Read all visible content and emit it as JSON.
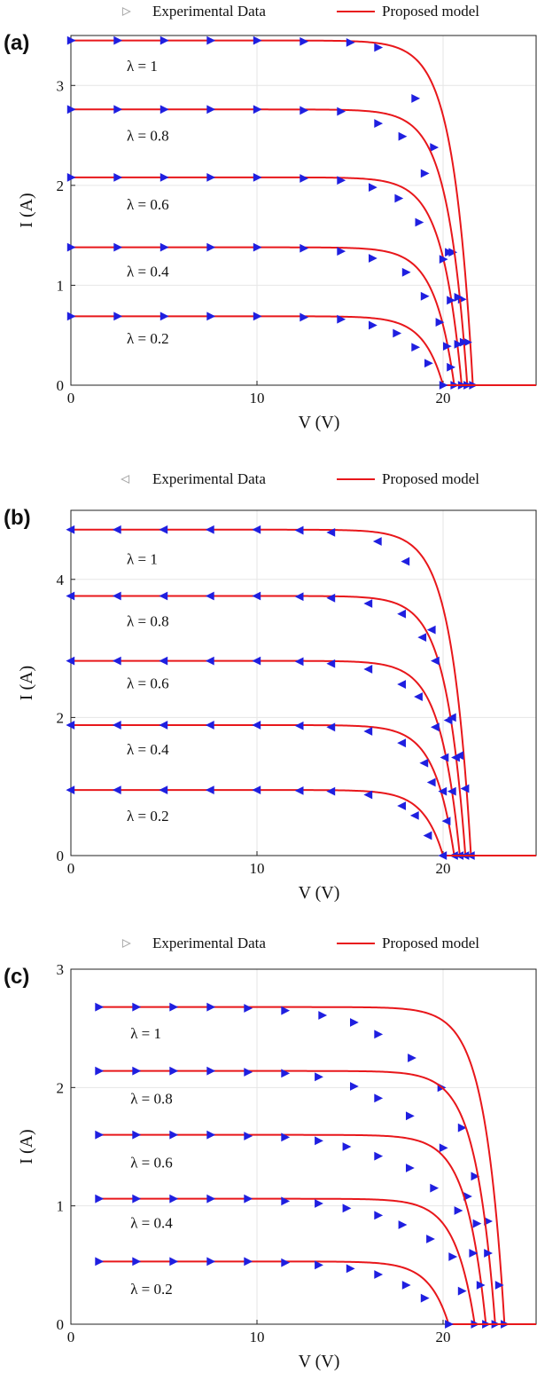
{
  "chart_data": [
    {
      "panel_label": "(a)",
      "type": "line",
      "xlabel": "V (V)",
      "ylabel": "I (A)",
      "xlim": [
        0,
        25
      ],
      "ylim": [
        0,
        3.5
      ],
      "xticks": [
        0,
        10,
        20
      ],
      "yticks": [
        0,
        1,
        2,
        3
      ],
      "grid": true,
      "legend": {
        "placement": "top",
        "experimental_label": "Experimental Data",
        "model_label": "Proposed model"
      },
      "marker": "triangle-right",
      "marker_color": "#1f1fe0",
      "line_color": "#e8171b",
      "series": [
        {
          "label": "λ = 1",
          "isc": 3.45,
          "voc": 21.6,
          "label_pos": [
            3,
            3.2
          ],
          "points": [
            [
              0,
              3.45
            ],
            [
              2.5,
              3.45
            ],
            [
              5,
              3.45
            ],
            [
              7.5,
              3.45
            ],
            [
              10,
              3.45
            ],
            [
              12.5,
              3.44
            ],
            [
              15,
              3.43
            ],
            [
              16.5,
              3.38
            ],
            [
              18.5,
              2.87
            ],
            [
              19.5,
              2.38
            ],
            [
              20.5,
              1.33
            ],
            [
              21,
              0.86
            ],
            [
              21.3,
              0.43
            ],
            [
              21.6,
              0
            ]
          ]
        },
        {
          "label": "λ = 0.8",
          "isc": 2.76,
          "voc": 21.3,
          "label_pos": [
            3,
            2.5
          ],
          "points": [
            [
              0,
              2.76
            ],
            [
              2.5,
              2.76
            ],
            [
              5,
              2.76
            ],
            [
              7.5,
              2.76
            ],
            [
              10,
              2.76
            ],
            [
              12.5,
              2.75
            ],
            [
              14.5,
              2.74
            ],
            [
              16.5,
              2.62
            ],
            [
              17.8,
              2.49
            ],
            [
              19,
              2.12
            ],
            [
              20.3,
              1.33
            ],
            [
              20.8,
              0.88
            ],
            [
              21.1,
              0.43
            ],
            [
              21.3,
              0
            ]
          ]
        },
        {
          "label": "λ = 0.6",
          "isc": 2.08,
          "voc": 21.0,
          "label_pos": [
            3,
            1.81
          ],
          "points": [
            [
              0,
              2.08
            ],
            [
              2.5,
              2.08
            ],
            [
              5,
              2.08
            ],
            [
              7.5,
              2.08
            ],
            [
              10,
              2.08
            ],
            [
              12.5,
              2.07
            ],
            [
              14.5,
              2.05
            ],
            [
              16.2,
              1.98
            ],
            [
              17.6,
              1.87
            ],
            [
              18.7,
              1.63
            ],
            [
              20,
              1.26
            ],
            [
              20.4,
              0.85
            ],
            [
              20.8,
              0.41
            ],
            [
              21,
              0
            ]
          ]
        },
        {
          "label": "λ = 0.4",
          "isc": 1.38,
          "voc": 20.6,
          "label_pos": [
            3,
            1.14
          ],
          "points": [
            [
              0,
              1.38
            ],
            [
              2.5,
              1.38
            ],
            [
              5,
              1.38
            ],
            [
              7.5,
              1.38
            ],
            [
              10,
              1.38
            ],
            [
              12.5,
              1.37
            ],
            [
              14.5,
              1.34
            ],
            [
              16.2,
              1.27
            ],
            [
              18,
              1.13
            ],
            [
              19,
              0.89
            ],
            [
              19.8,
              0.63
            ],
            [
              20.2,
              0.39
            ],
            [
              20.4,
              0.18
            ],
            [
              20.6,
              0
            ]
          ]
        },
        {
          "label": "λ = 0.2",
          "isc": 0.69,
          "voc": 20.0,
          "label_pos": [
            3,
            0.47
          ],
          "points": [
            [
              0,
              0.69
            ],
            [
              2.5,
              0.69
            ],
            [
              5,
              0.69
            ],
            [
              7.5,
              0.69
            ],
            [
              10,
              0.69
            ],
            [
              12.5,
              0.68
            ],
            [
              14.5,
              0.66
            ],
            [
              16.2,
              0.6
            ],
            [
              17.5,
              0.52
            ],
            [
              18.5,
              0.38
            ],
            [
              19.2,
              0.22
            ],
            [
              20,
              0
            ]
          ]
        }
      ]
    },
    {
      "panel_label": "(b)",
      "type": "line",
      "xlabel": "V (V)",
      "ylabel": "I (A)",
      "xlim": [
        0,
        25
      ],
      "ylim": [
        0,
        5
      ],
      "xticks": [
        0,
        10,
        20
      ],
      "yticks": [
        0,
        2,
        4
      ],
      "grid": true,
      "legend": {
        "placement": "top",
        "experimental_label": "Experimental Data",
        "model_label": "Proposed model"
      },
      "marker": "triangle-left",
      "marker_color": "#1f1fe0",
      "line_color": "#e8171b",
      "series": [
        {
          "label": "λ = 1",
          "isc": 4.72,
          "voc": 21.5,
          "label_pos": [
            3,
            4.3
          ],
          "points": [
            [
              0,
              4.72
            ],
            [
              2.5,
              4.72
            ],
            [
              5,
              4.72
            ],
            [
              7.5,
              4.72
            ],
            [
              10,
              4.72
            ],
            [
              12.3,
              4.71
            ],
            [
              14,
              4.68
            ],
            [
              16.5,
              4.55
            ],
            [
              18,
              4.26
            ],
            [
              19.4,
              3.27
            ],
            [
              20.5,
              2.0
            ],
            [
              20.9,
              1.45
            ],
            [
              21.2,
              0.97
            ],
            [
              21.5,
              0
            ]
          ]
        },
        {
          "label": "λ = 0.8",
          "isc": 3.76,
          "voc": 21.2,
          "label_pos": [
            3,
            3.4
          ],
          "points": [
            [
              0,
              3.76
            ],
            [
              2.5,
              3.76
            ],
            [
              5,
              3.76
            ],
            [
              7.5,
              3.76
            ],
            [
              10,
              3.76
            ],
            [
              12.3,
              3.75
            ],
            [
              14,
              3.73
            ],
            [
              16,
              3.65
            ],
            [
              17.8,
              3.5
            ],
            [
              18.9,
              3.16
            ],
            [
              19.6,
              2.82
            ],
            [
              20.3,
              1.96
            ],
            [
              20.7,
              1.42
            ],
            [
              21.2,
              0
            ]
          ]
        },
        {
          "label": "λ = 0.6",
          "isc": 2.82,
          "voc": 20.9,
          "label_pos": [
            3,
            2.5
          ],
          "points": [
            [
              0,
              2.82
            ],
            [
              2.5,
              2.82
            ],
            [
              5,
              2.82
            ],
            [
              7.5,
              2.82
            ],
            [
              10,
              2.82
            ],
            [
              12.3,
              2.81
            ],
            [
              14,
              2.78
            ],
            [
              16,
              2.7
            ],
            [
              17.8,
              2.48
            ],
            [
              18.7,
              2.3
            ],
            [
              19.6,
              1.86
            ],
            [
              20.1,
              1.42
            ],
            [
              20.5,
              0.93
            ],
            [
              20.9,
              0
            ]
          ]
        },
        {
          "label": "λ = 0.4",
          "isc": 1.89,
          "voc": 20.6,
          "label_pos": [
            3,
            1.54
          ],
          "points": [
            [
              0,
              1.89
            ],
            [
              2.5,
              1.89
            ],
            [
              5,
              1.89
            ],
            [
              7.5,
              1.89
            ],
            [
              10,
              1.89
            ],
            [
              12.3,
              1.88
            ],
            [
              14,
              1.86
            ],
            [
              16,
              1.8
            ],
            [
              17.8,
              1.63
            ],
            [
              19,
              1.34
            ],
            [
              19.4,
              1.06
            ],
            [
              20,
              0.93
            ],
            [
              20.2,
              0.5
            ],
            [
              20.6,
              0
            ]
          ]
        },
        {
          "label": "λ = 0.2",
          "isc": 0.95,
          "voc": 20.0,
          "label_pos": [
            3,
            0.58
          ],
          "points": [
            [
              0,
              0.95
            ],
            [
              2.5,
              0.95
            ],
            [
              5,
              0.95
            ],
            [
              7.5,
              0.95
            ],
            [
              10,
              0.95
            ],
            [
              12.3,
              0.94
            ],
            [
              14,
              0.93
            ],
            [
              16,
              0.88
            ],
            [
              17.8,
              0.72
            ],
            [
              18.5,
              0.58
            ],
            [
              19.2,
              0.29
            ],
            [
              20,
              0
            ]
          ]
        }
      ]
    },
    {
      "panel_label": "(c)",
      "type": "line",
      "xlabel": "V (V)",
      "ylabel": "I (A)",
      "xlim": [
        0,
        25
      ],
      "ylim": [
        0,
        3
      ],
      "xticks": [
        0,
        10,
        20
      ],
      "yticks": [
        0,
        1,
        2,
        3
      ],
      "grid": true,
      "legend": {
        "placement": "top",
        "experimental_label": "Experimental Data",
        "model_label": "Proposed model"
      },
      "marker": "triangle-right",
      "marker_color": "#1f1fe0",
      "line_color": "#e8171b",
      "series": [
        {
          "label": "λ = 1",
          "isc": 2.68,
          "voc": 23.3,
          "label_pos": [
            3.2,
            2.46
          ],
          "points": [
            [
              1.5,
              2.68
            ],
            [
              3.5,
              2.68
            ],
            [
              5.5,
              2.68
            ],
            [
              7.5,
              2.68
            ],
            [
              9.5,
              2.67
            ],
            [
              11.5,
              2.65
            ],
            [
              13.5,
              2.61
            ],
            [
              15.2,
              2.55
            ],
            [
              16.5,
              2.45
            ],
            [
              18.3,
              2.25
            ],
            [
              19.9,
              2.0
            ],
            [
              21,
              1.66
            ],
            [
              21.7,
              1.25
            ],
            [
              22.4,
              0.87
            ],
            [
              23,
              0.33
            ],
            [
              23.3,
              0
            ]
          ]
        },
        {
          "label": "λ = 0.8",
          "isc": 2.14,
          "voc": 22.8,
          "label_pos": [
            3.2,
            1.91
          ],
          "points": [
            [
              1.5,
              2.14
            ],
            [
              3.5,
              2.14
            ],
            [
              5.5,
              2.14
            ],
            [
              7.5,
              2.14
            ],
            [
              9.5,
              2.13
            ],
            [
              11.5,
              2.12
            ],
            [
              13.3,
              2.09
            ],
            [
              15.2,
              2.01
            ],
            [
              16.5,
              1.91
            ],
            [
              18.2,
              1.76
            ],
            [
              20,
              1.49
            ],
            [
              21.3,
              1.08
            ],
            [
              21.8,
              0.85
            ],
            [
              22.4,
              0.6
            ],
            [
              22.8,
              0
            ]
          ]
        },
        {
          "label": "λ = 0.6",
          "isc": 1.6,
          "voc": 22.3,
          "label_pos": [
            3.2,
            1.37
          ],
          "points": [
            [
              1.5,
              1.6
            ],
            [
              3.5,
              1.6
            ],
            [
              5.5,
              1.6
            ],
            [
              7.5,
              1.6
            ],
            [
              9.5,
              1.59
            ],
            [
              11.5,
              1.58
            ],
            [
              13.3,
              1.55
            ],
            [
              14.8,
              1.5
            ],
            [
              16.5,
              1.42
            ],
            [
              18.2,
              1.32
            ],
            [
              19.5,
              1.15
            ],
            [
              20.8,
              0.96
            ],
            [
              21.6,
              0.6
            ],
            [
              22,
              0.33
            ],
            [
              22.3,
              0
            ]
          ]
        },
        {
          "label": "λ = 0.4",
          "isc": 1.06,
          "voc": 21.7,
          "label_pos": [
            3.2,
            0.86
          ],
          "points": [
            [
              1.5,
              1.06
            ],
            [
              3.5,
              1.06
            ],
            [
              5.5,
              1.06
            ],
            [
              7.5,
              1.06
            ],
            [
              9.5,
              1.06
            ],
            [
              11.5,
              1.04
            ],
            [
              13.3,
              1.02
            ],
            [
              14.8,
              0.98
            ],
            [
              16.5,
              0.92
            ],
            [
              17.8,
              0.84
            ],
            [
              19.3,
              0.72
            ],
            [
              20.5,
              0.57
            ],
            [
              21,
              0.28
            ],
            [
              21.7,
              0
            ]
          ]
        },
        {
          "label": "λ = 0.2",
          "isc": 0.53,
          "voc": 20.3,
          "label_pos": [
            3.2,
            0.3
          ],
          "points": [
            [
              1.5,
              0.53
            ],
            [
              3.5,
              0.53
            ],
            [
              5.5,
              0.53
            ],
            [
              7.5,
              0.53
            ],
            [
              9.5,
              0.53
            ],
            [
              11.5,
              0.52
            ],
            [
              13.3,
              0.5
            ],
            [
              15,
              0.47
            ],
            [
              16.5,
              0.42
            ],
            [
              18,
              0.33
            ],
            [
              19,
              0.22
            ],
            [
              20.3,
              0
            ]
          ]
        }
      ]
    }
  ]
}
